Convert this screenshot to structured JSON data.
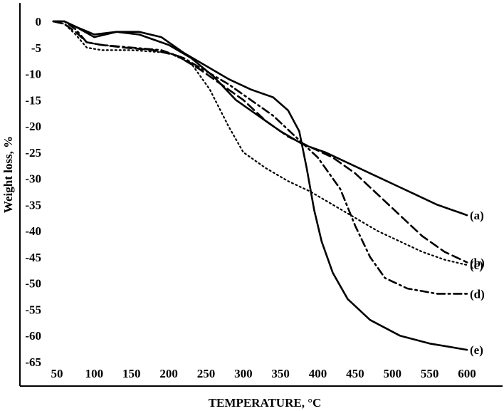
{
  "chart_data": {
    "type": "line",
    "xlabel": "TEMPERATURE, °C",
    "ylabel": "Weight loss, %",
    "xlim": [
      40,
      610
    ],
    "ylim": [
      -67,
      2
    ],
    "x_ticks": [
      50,
      100,
      150,
      200,
      250,
      300,
      350,
      400,
      450,
      500,
      550,
      600
    ],
    "y_ticks": [
      0,
      -5,
      -10,
      -15,
      -20,
      -25,
      -30,
      -35,
      -40,
      -45,
      -50,
      -55,
      -60,
      -65
    ],
    "grid": false,
    "legend": "none",
    "series": [
      {
        "name": "(a)",
        "style": "solid",
        "points": [
          [
            45,
            0
          ],
          [
            60,
            0
          ],
          [
            75,
            -1
          ],
          [
            100,
            -3
          ],
          [
            130,
            -2
          ],
          [
            160,
            -2.5
          ],
          [
            200,
            -4.5
          ],
          [
            230,
            -7
          ],
          [
            260,
            -10.5
          ],
          [
            290,
            -15
          ],
          [
            320,
            -18
          ],
          [
            350,
            -21
          ],
          [
            380,
            -23.5
          ],
          [
            410,
            -25
          ],
          [
            440,
            -27
          ],
          [
            470,
            -29
          ],
          [
            500,
            -31
          ],
          [
            530,
            -33
          ],
          [
            560,
            -35
          ],
          [
            590,
            -36.5
          ],
          [
            600,
            -37
          ]
        ]
      },
      {
        "name": "(b)",
        "style": "dashed",
        "points": [
          [
            45,
            0
          ],
          [
            60,
            -0.5
          ],
          [
            75,
            -2
          ],
          [
            90,
            -4
          ],
          [
            110,
            -4.5
          ],
          [
            140,
            -5
          ],
          [
            180,
            -5.5
          ],
          [
            210,
            -6.5
          ],
          [
            240,
            -9
          ],
          [
            270,
            -12
          ],
          [
            300,
            -15
          ],
          [
            330,
            -19
          ],
          [
            360,
            -22
          ],
          [
            390,
            -24
          ],
          [
            420,
            -26
          ],
          [
            450,
            -29
          ],
          [
            480,
            -33
          ],
          [
            510,
            -37
          ],
          [
            540,
            -41
          ],
          [
            570,
            -44
          ],
          [
            600,
            -46
          ]
        ]
      },
      {
        "name": "(c)",
        "style": "dotted",
        "points": [
          [
            45,
            0
          ],
          [
            60,
            -0.5
          ],
          [
            75,
            -2.5
          ],
          [
            90,
            -5
          ],
          [
            110,
            -5.5
          ],
          [
            150,
            -5.5
          ],
          [
            200,
            -6
          ],
          [
            230,
            -8
          ],
          [
            255,
            -13
          ],
          [
            280,
            -20
          ],
          [
            300,
            -25
          ],
          [
            330,
            -28
          ],
          [
            360,
            -30.5
          ],
          [
            390,
            -32.5
          ],
          [
            420,
            -35
          ],
          [
            450,
            -37.5
          ],
          [
            480,
            -40
          ],
          [
            510,
            -42
          ],
          [
            540,
            -44
          ],
          [
            570,
            -45.5
          ],
          [
            600,
            -46.5
          ]
        ]
      },
      {
        "name": "(d)",
        "style": "dash-dot",
        "points": [
          [
            45,
            0
          ],
          [
            60,
            0
          ],
          [
            75,
            -1.5
          ],
          [
            90,
            -4
          ],
          [
            110,
            -4.5
          ],
          [
            150,
            -5
          ],
          [
            190,
            -5.5
          ],
          [
            220,
            -7
          ],
          [
            250,
            -9.5
          ],
          [
            280,
            -12
          ],
          [
            310,
            -15
          ],
          [
            340,
            -18
          ],
          [
            370,
            -22
          ],
          [
            400,
            -26
          ],
          [
            430,
            -32
          ],
          [
            450,
            -39
          ],
          [
            470,
            -45
          ],
          [
            490,
            -49
          ],
          [
            520,
            -51
          ],
          [
            560,
            -52
          ],
          [
            600,
            -52
          ]
        ]
      },
      {
        "name": "(e)",
        "style": "solid",
        "points": [
          [
            45,
            0
          ],
          [
            60,
            0
          ],
          [
            75,
            -1
          ],
          [
            100,
            -2.5
          ],
          [
            130,
            -2
          ],
          [
            160,
            -2
          ],
          [
            190,
            -3
          ],
          [
            220,
            -6
          ],
          [
            250,
            -8.5
          ],
          [
            280,
            -11
          ],
          [
            310,
            -13
          ],
          [
            340,
            -14.5
          ],
          [
            360,
            -17
          ],
          [
            375,
            -21
          ],
          [
            385,
            -28
          ],
          [
            395,
            -36
          ],
          [
            405,
            -42
          ],
          [
            420,
            -48
          ],
          [
            440,
            -53
          ],
          [
            470,
            -57
          ],
          [
            510,
            -60
          ],
          [
            550,
            -61.5
          ],
          [
            600,
            -62.7
          ]
        ]
      }
    ]
  }
}
